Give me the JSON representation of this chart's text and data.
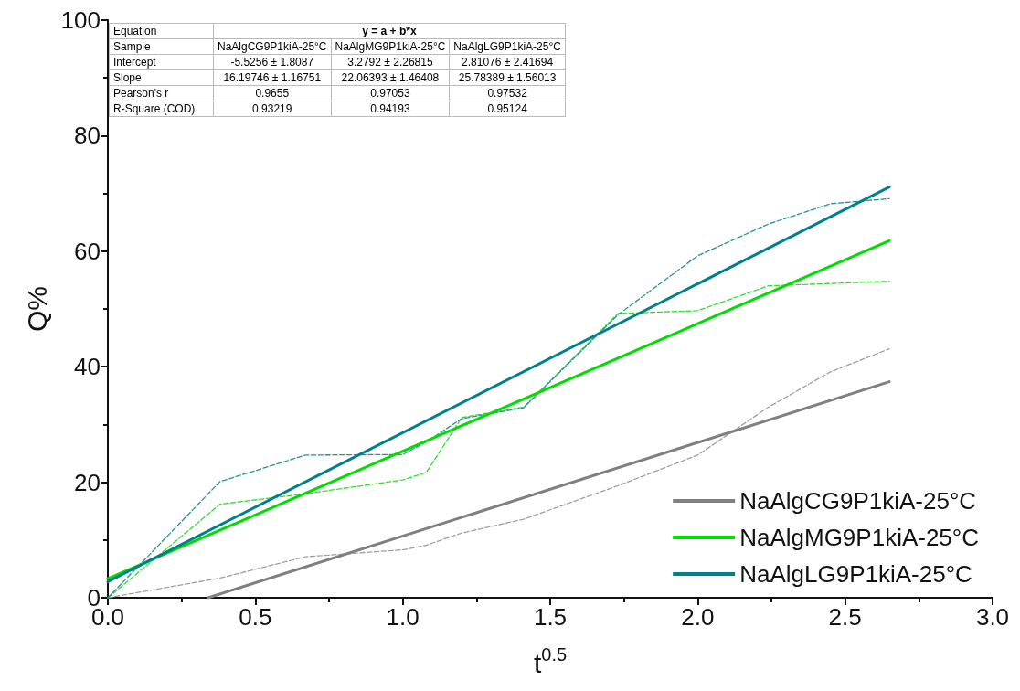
{
  "chart_data": {
    "type": "line",
    "xlabel": "t$^{0.5}$",
    "ylabel": "Q%",
    "x": [
      0,
      0.38,
      0.67,
      1.0,
      1.08,
      1.2,
      1.41,
      1.73,
      2.0,
      2.24,
      2.45,
      2.65
    ],
    "series": [
      {
        "color": "#a0a0a0",
        "line_style": "dashed",
        "values": [
          0,
          3.4,
          7.1,
          8.3,
          9.1,
          11.2,
          13.6,
          19.4,
          24.7,
          33,
          39.1,
          43.1
        ]
      },
      {
        "color": "#33dd33",
        "line_style": "dashed",
        "values": [
          0,
          16.2,
          18,
          20.4,
          21.7,
          31.2,
          33,
          49.2,
          49.7,
          54,
          54.4,
          54.8
        ]
      },
      {
        "color": "#2a8fa0",
        "line_style": "dashed",
        "values": [
          0,
          20.1,
          24.7,
          24.8,
          27,
          31,
          32.9,
          49,
          59.2,
          64.7,
          68.2,
          69.1
        ]
      },
      {
        "name": "NaAlgCG9P1kiA-25°C",
        "color": "#808080",
        "line_style": "solid",
        "x": [
          0.34,
          2.65
        ],
        "values": [
          0,
          37.4
        ]
      },
      {
        "name": "NaAlgMG9P1kiA-25°C",
        "color": "#00dd00",
        "line_style": "solid",
        "x": [
          0,
          2.65
        ],
        "values": [
          3.3,
          61.8
        ]
      },
      {
        "name": "NaAlgLG9P1kiA-25°C",
        "color": "#00808a",
        "line_style": "solid",
        "x": [
          0,
          2.65
        ],
        "values": [
          2.8,
          71.1
        ]
      }
    ],
    "xlim": [
      0,
      3
    ],
    "xticks": [
      {
        "value": 0,
        "label": "0.0"
      },
      {
        "value": 0.5,
        "label": "0.5"
      },
      {
        "value": 1,
        "label": "1.0"
      },
      {
        "value": 1.5,
        "label": "1.5"
      },
      {
        "value": 2,
        "label": "2.0"
      },
      {
        "value": 2.5,
        "label": "2.5"
      },
      {
        "value": 3,
        "label": "3.0"
      }
    ],
    "ylim": [
      0,
      100
    ],
    "yticks": [
      0,
      20,
      40,
      60,
      80,
      100
    ],
    "grid": false,
    "marker": "none",
    "legend": "bottom right",
    "annotations": [
      "Equation",
      "y = a + b*x",
      "Sample",
      "NaAlgCG9P1kiA-25°C",
      "NaAlgMG9P1kiA-25°C",
      "NaAlgLG9P1kiA-25°C",
      "Intercept",
      "-5.5256 ± 1.8087",
      "3.2792 ± 2.26815",
      "2.81076 ± 2.41694",
      "Slope",
      "16.19746 ± 1.16751",
      "22.06393 ± 1.46408",
      "25.78389 ± 1.56013",
      "Pearson's r",
      "0.9655",
      "0.97053",
      "0.97532",
      "R-Square (COD)",
      "0.93219",
      "0.94193",
      "0.95124"
    ]
  }
}
